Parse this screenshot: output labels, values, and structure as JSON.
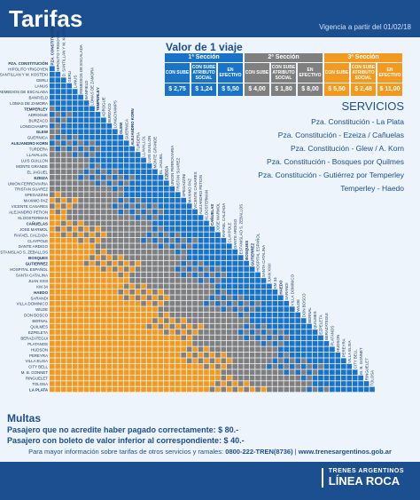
{
  "header": {
    "title": "Tarifas",
    "validity": "Vigencia a partir del 01/02/18"
  },
  "fares": {
    "title": "Valor de 1 viaje",
    "sections": [
      {
        "name": "1ª Sección",
        "color": "#1a73c6",
        "columns": [
          {
            "label": "CON SUBE",
            "value": "$ 2,75"
          },
          {
            "label": "CON SUBE ATRIBUTO SOCIAL",
            "value": "$ 1,24"
          },
          {
            "label": "EN EFECTIVO",
            "value": "$ 5,50"
          }
        ]
      },
      {
        "name": "2ª Sección",
        "color": "#7f7f7f",
        "columns": [
          {
            "label": "CON SUBE",
            "value": "$ 4,00"
          },
          {
            "label": "CON SUBE ATRIBUTO SOCIAL",
            "value": "$ 1,80"
          },
          {
            "label": "EN EFECTIVO",
            "value": "$ 8,00"
          }
        ]
      },
      {
        "name": "3ª Sección",
        "color": "#f29a1f",
        "columns": [
          {
            "label": "CON SUBE",
            "value": "$ 5,50"
          },
          {
            "label": "CON SUBE ATRIBUTO SOCIAL",
            "value": "$ 2,48"
          },
          {
            "label": "EN EFECTIVO",
            "value": "$ 11,00"
          }
        ]
      }
    ]
  },
  "services": {
    "title": "SERVICIOS",
    "items": [
      "Pza. Constitución - La Plata",
      "Pza. Constitución - Ezeiza / Cañuelas",
      "Pza. Constitución - Glew / A. Korn",
      "Pza. Constitución - Bosques por Quilmes",
      "Pza. Constitución - Gutiérrez por Temperley",
      "Temperley - Haedo"
    ]
  },
  "stations": [
    {
      "name": "PZA. CONSTITUCIÓN",
      "bold": true
    },
    {
      "name": "HIPOLITO YRIGOYEN",
      "bold": false
    },
    {
      "name": "D. SANTILLAN Y M. KOSTEKI",
      "bold": false
    },
    {
      "name": "GERLI",
      "bold": false
    },
    {
      "name": "LANUS",
      "bold": false
    },
    {
      "name": "REMEDIOS DE ESCALADA",
      "bold": false
    },
    {
      "name": "BANFIELD",
      "bold": false
    },
    {
      "name": "LOMAS DE ZAMORA",
      "bold": false
    },
    {
      "name": "TEMPERLEY",
      "bold": true
    },
    {
      "name": "ADROGUE",
      "bold": false
    },
    {
      "name": "BURZACO",
      "bold": false
    },
    {
      "name": "LONGCHAMPS",
      "bold": false
    },
    {
      "name": "GLEW",
      "bold": true
    },
    {
      "name": "GUERNICA",
      "bold": false
    },
    {
      "name": "ALEJANDRO KORN",
      "bold": true
    },
    {
      "name": "TURDERA",
      "bold": false
    },
    {
      "name": "LLAVALLOL",
      "bold": false
    },
    {
      "name": "LUIS GUILLON",
      "bold": false
    },
    {
      "name": "MONTE GRANDE",
      "bold": false
    },
    {
      "name": "EL JAGUEL",
      "bold": false
    },
    {
      "name": "EZEIZA",
      "bold": true
    },
    {
      "name": "UNION FERROVIARIA",
      "bold": false
    },
    {
      "name": "TRISTAN SUAREZ",
      "bold": false
    },
    {
      "name": "SPEGAZZINI",
      "bold": false
    },
    {
      "name": "MAXIMO PAZ",
      "bold": false
    },
    {
      "name": "VICENTE CASARES",
      "bold": false
    },
    {
      "name": "ALEJANDRO PETION",
      "bold": false
    },
    {
      "name": "KLOOSTERMAN",
      "bold": false
    },
    {
      "name": "CAÑUELAS",
      "bold": true
    },
    {
      "name": "JOSE MARMOL",
      "bold": false
    },
    {
      "name": "RAFAEL CALZADA",
      "bold": false
    },
    {
      "name": "CLAYPOLE",
      "bold": false
    },
    {
      "name": "DANTE ARDIGO",
      "bold": false
    },
    {
      "name": "ESTANISLAO S. ZEBALLOS",
      "bold": false
    },
    {
      "name": "BOSQUES",
      "bold": true
    },
    {
      "name": "GUTIERREZ",
      "bold": true
    },
    {
      "name": "HOSPITAL ESPAÑOL",
      "bold": false
    },
    {
      "name": "SANTA CATALINA",
      "bold": false
    },
    {
      "name": "JUAN XXIII",
      "bold": false
    },
    {
      "name": "KM 34",
      "bold": false
    },
    {
      "name": "HAEDO",
      "bold": true
    },
    {
      "name": "SARANDI",
      "bold": false
    },
    {
      "name": "VILLA DOMINICO",
      "bold": false
    },
    {
      "name": "WILDE",
      "bold": false
    },
    {
      "name": "DON BOSCO",
      "bold": false
    },
    {
      "name": "BERNAL",
      "bold": false
    },
    {
      "name": "QUILMES",
      "bold": false
    },
    {
      "name": "EZPELETA",
      "bold": false
    },
    {
      "name": "BERAZATEGUI",
      "bold": false
    },
    {
      "name": "PLATANOS",
      "bold": false
    },
    {
      "name": "HUDSON",
      "bold": false
    },
    {
      "name": "PEREYRA",
      "bold": false
    },
    {
      "name": "VILLA ELISA",
      "bold": false
    },
    {
      "name": "CITY BELL",
      "bold": false
    },
    {
      "name": "M. B. GONNET",
      "bold": false
    },
    {
      "name": "RINGUELET",
      "bold": false
    },
    {
      "name": "TOLOSA",
      "bold": false
    },
    {
      "name": "LA PLATA",
      "bold": true
    }
  ],
  "fines": {
    "title": "Multas",
    "items": [
      "Pasajero que no acredite haber pagado correctamente: $ 80.-",
      "Pasajero con boleto de valor inferior al correspondiente: $ 40.-"
    ]
  },
  "footer": {
    "note": "Para mayor información sobre tarifas de otros servicios y ramales:",
    "phone": "0800-222-TREN(8736)",
    "web": "www.trenesargentinos.gob.ar",
    "brand": "TRENES ARGENTINOS",
    "line": "LÍNEA ROCA"
  }
}
